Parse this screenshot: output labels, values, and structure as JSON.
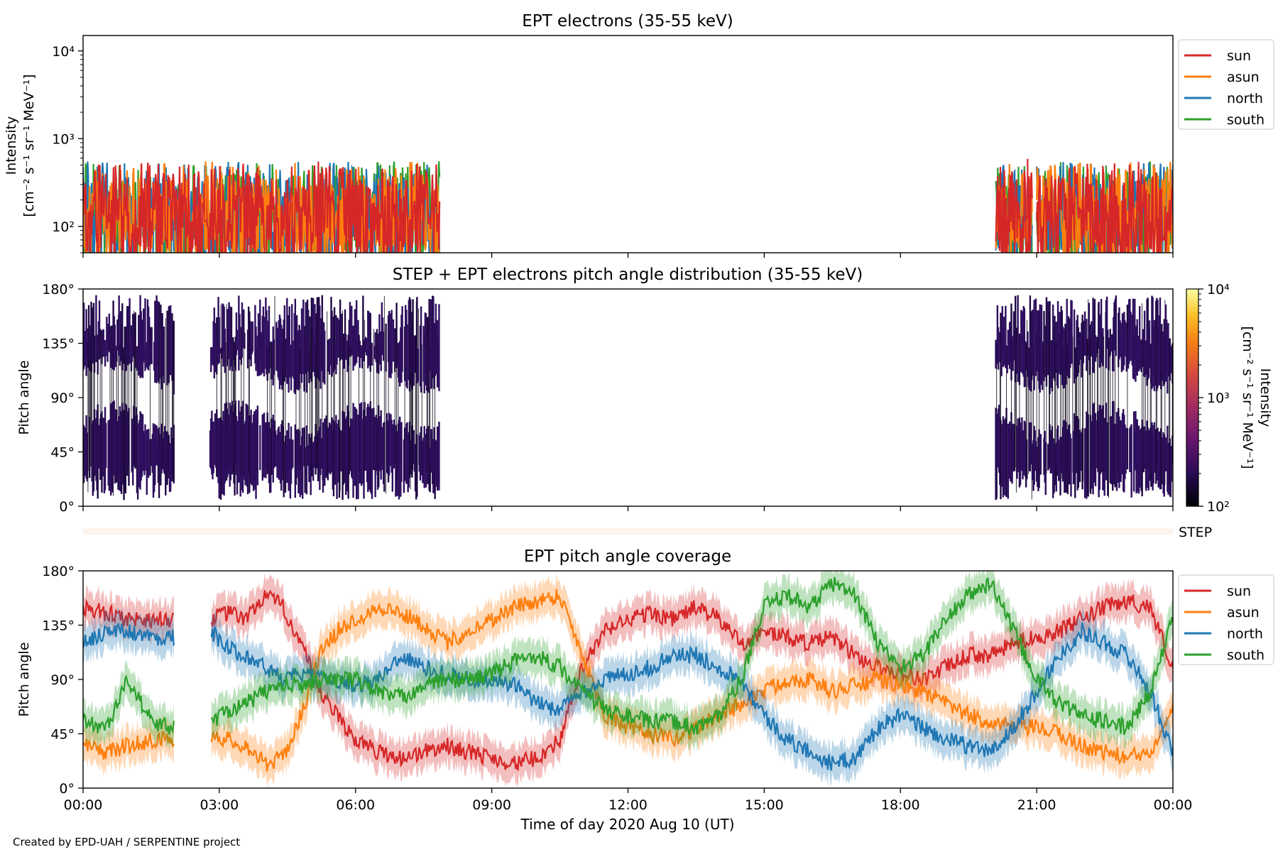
{
  "footer": "Created by EPD-UAH / SERPENTINE project",
  "xlabel": "Time of day 2020 Aug 10 (UT)",
  "xticks": [
    "00:00",
    "03:00",
    "06:00",
    "09:00",
    "12:00",
    "15:00",
    "18:00",
    "21:00",
    "00:00"
  ],
  "colors": {
    "sun": "#d62728",
    "asun": "#ff7f0e",
    "north": "#1f77b4",
    "south": "#2ca02c",
    "step_bar": "#fff3ed",
    "pad_fill": "#2e0f5e"
  },
  "chart_data": [
    {
      "type": "line",
      "title": "EPT electrons (35-55 keV)",
      "ylabel": "Intensity",
      "yunits": "[cm⁻² s⁻¹ sr⁻¹ MeV⁻¹]",
      "yscale": "log",
      "ylim": [
        50,
        15000
      ],
      "yticks": [
        "10²",
        "10³",
        "10⁴"
      ],
      "xlim_hours": [
        0,
        24
      ],
      "legend_position": "outside-right-top",
      "legend": [
        "sun",
        "asun",
        "north",
        "south"
      ],
      "data_intervals_hours": [
        [
          0,
          7.85
        ],
        [
          20.1,
          20.9
        ],
        [
          21.0,
          24
        ]
      ],
      "typical_range": [
        60,
        350
      ],
      "peak_values": [
        {
          "series": "sun",
          "x_hours": 20.8,
          "value": 590
        },
        {
          "series": "asun",
          "x_hours": 2.7,
          "value": 550
        },
        {
          "series": "asun",
          "x_hours": 7.2,
          "value": 540
        }
      ]
    },
    {
      "type": "heatmap",
      "title": "STEP + EPT electrons pitch angle distribution (35-55 keV)",
      "ylabel": "Pitch angle",
      "ylim": [
        0,
        180
      ],
      "yticks": [
        "0°",
        "45°",
        "90°",
        "135°",
        "180°"
      ],
      "colorbar_label": "Intensity",
      "colorbar_units": "[cm⁻² s⁻¹ sr⁻¹ MeV⁻¹]",
      "colorbar_ticks": [
        "10²",
        "10³",
        "10⁴"
      ],
      "colorbar_range": [
        100,
        10000
      ],
      "side_label": "STEP",
      "data_intervals_hours": [
        [
          0,
          2.0
        ],
        [
          2.8,
          7.85
        ],
        [
          20.1,
          24
        ]
      ]
    },
    {
      "type": "line",
      "title": "EPT pitch angle coverage",
      "ylabel": "Pitch angle",
      "ylim": [
        0,
        180
      ],
      "yticks": [
        "0°",
        "45°",
        "90°",
        "135°",
        "180°"
      ],
      "xlim_hours": [
        0,
        24
      ],
      "legend_position": "outside-right-top",
      "legend": [
        "sun",
        "asun",
        "north",
        "south"
      ],
      "series": [
        {
          "name": "sun",
          "x": [
            0,
            0.5,
            1.0,
            1.5,
            2.0,
            2.8,
            3.2,
            3.6,
            4.0,
            4.4,
            4.8,
            5.2,
            5.6,
            6.0,
            6.5,
            7.0,
            7.5,
            8.0,
            8.5,
            9.0,
            9.5,
            10.0,
            10.5,
            11.0,
            11.5,
            12.0,
            12.5,
            13.0,
            13.5,
            14.0,
            14.5,
            15.0,
            15.5,
            16.0,
            16.5,
            17.0,
            17.5,
            18.0,
            18.5,
            19.0,
            19.5,
            20.0,
            20.5,
            21.0,
            21.5,
            22.0,
            22.5,
            23.0,
            23.5,
            24.0
          ],
          "y": [
            150,
            145,
            140,
            140,
            140,
            140,
            145,
            140,
            160,
            150,
            120,
            80,
            60,
            40,
            30,
            25,
            30,
            35,
            30,
            25,
            20,
            25,
            40,
            100,
            130,
            140,
            145,
            140,
            150,
            140,
            120,
            130,
            125,
            120,
            125,
            110,
            100,
            95,
            90,
            100,
            110,
            110,
            120,
            125,
            130,
            140,
            150,
            155,
            150,
            100
          ]
        },
        {
          "name": "asun",
          "x": [
            0,
            0.5,
            1.0,
            1.5,
            2.0,
            2.8,
            3.2,
            3.6,
            4.0,
            4.4,
            4.8,
            5.2,
            5.6,
            6.0,
            6.5,
            7.0,
            7.5,
            8.0,
            8.5,
            9.0,
            9.5,
            10.0,
            10.5,
            11.0,
            11.5,
            12.0,
            12.5,
            13.0,
            13.5,
            14.0,
            14.5,
            15.0,
            15.5,
            16.0,
            16.5,
            17.0,
            17.5,
            18.0,
            18.5,
            19.0,
            19.5,
            20.0,
            20.5,
            21.0,
            21.5,
            22.0,
            22.5,
            23.0,
            23.5,
            24.0
          ],
          "y": [
            35,
            30,
            35,
            40,
            40,
            45,
            40,
            35,
            20,
            25,
            60,
            110,
            130,
            140,
            150,
            145,
            135,
            120,
            130,
            140,
            150,
            155,
            160,
            110,
            60,
            50,
            45,
            40,
            50,
            60,
            70,
            80,
            90,
            90,
            80,
            85,
            90,
            85,
            80,
            70,
            60,
            55,
            50,
            50,
            45,
            35,
            30,
            25,
            30,
            70
          ]
        },
        {
          "name": "north",
          "x": [
            0,
            0.5,
            1.0,
            1.5,
            2.0,
            2.8,
            3.2,
            3.6,
            4.0,
            4.4,
            4.8,
            5.2,
            5.6,
            6.0,
            6.5,
            7.0,
            7.5,
            8.0,
            8.5,
            9.0,
            9.5,
            10.0,
            10.5,
            11.0,
            11.5,
            12.0,
            12.5,
            13.0,
            13.5,
            14.0,
            14.5,
            15.0,
            15.5,
            16.0,
            16.5,
            17.0,
            17.5,
            18.0,
            18.5,
            19.0,
            19.5,
            20.0,
            20.5,
            21.0,
            21.5,
            22.0,
            22.5,
            23.0,
            23.5,
            24.0
          ],
          "y": [
            120,
            130,
            130,
            125,
            125,
            130,
            115,
            110,
            100,
            90,
            95,
            90,
            90,
            85,
            90,
            110,
            100,
            95,
            90,
            90,
            85,
            70,
            65,
            80,
            90,
            95,
            100,
            110,
            110,
            100,
            90,
            60,
            40,
            30,
            20,
            25,
            50,
            60,
            50,
            40,
            35,
            30,
            50,
            80,
            110,
            130,
            120,
            110,
            80,
            30
          ]
        },
        {
          "name": "south",
          "x": [
            0,
            0.5,
            1.0,
            1.5,
            2.0,
            2.8,
            3.2,
            3.6,
            4.0,
            4.4,
            4.8,
            5.2,
            5.6,
            6.0,
            6.5,
            7.0,
            7.5,
            8.0,
            8.5,
            9.0,
            9.5,
            10.0,
            10.5,
            11.0,
            11.5,
            12.0,
            12.5,
            13.0,
            13.5,
            14.0,
            14.5,
            15.0,
            15.5,
            16.0,
            16.5,
            17.0,
            17.5,
            18.0,
            18.5,
            19.0,
            19.5,
            20.0,
            20.5,
            21.0,
            21.5,
            22.0,
            22.5,
            23.0,
            23.5,
            24.0
          ],
          "y": [
            55,
            50,
            90,
            55,
            50,
            55,
            65,
            70,
            80,
            85,
            85,
            90,
            90,
            90,
            80,
            75,
            85,
            90,
            90,
            95,
            105,
            110,
            100,
            80,
            65,
            60,
            55,
            55,
            50,
            60,
            90,
            150,
            160,
            150,
            170,
            160,
            120,
            100,
            110,
            140,
            160,
            170,
            130,
            90,
            70,
            60,
            55,
            50,
            80,
            140
          ]
        }
      ]
    }
  ]
}
